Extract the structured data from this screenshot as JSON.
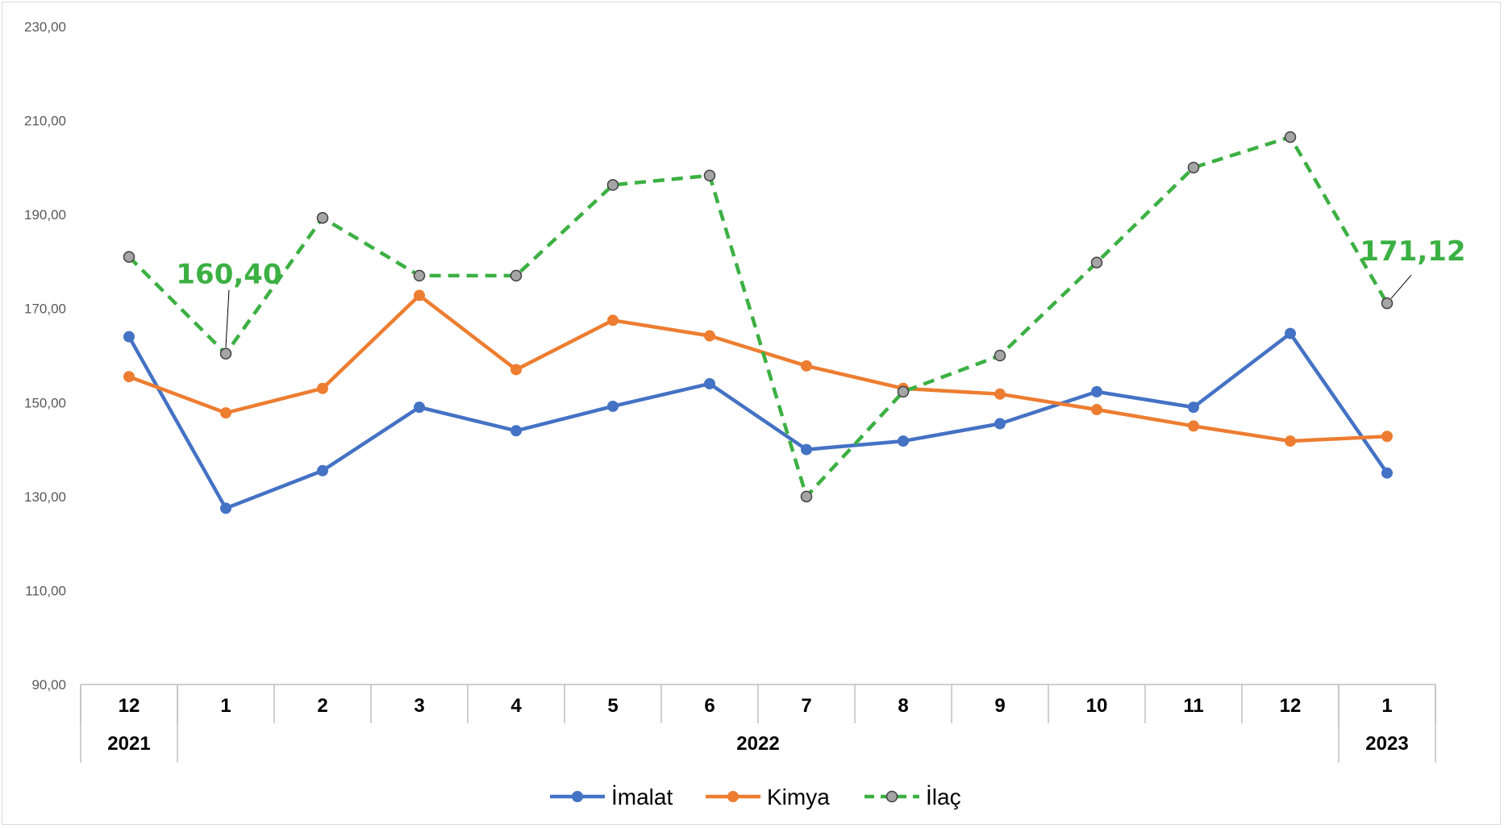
{
  "chart_data": {
    "type": "line",
    "categories": [
      "12",
      "1",
      "2",
      "3",
      "4",
      "5",
      "6",
      "7",
      "8",
      "9",
      "10",
      "11",
      "12",
      "1"
    ],
    "year_groups": [
      {
        "label": "2021",
        "start": 0,
        "end": 0
      },
      {
        "label": "2022",
        "start": 1,
        "end": 12
      },
      {
        "label": "2023",
        "start": 13,
        "end": 13
      }
    ],
    "ylim": [
      90,
      230
    ],
    "yticks": [
      "90,00",
      "110,00",
      "130,00",
      "150,00",
      "170,00",
      "190,00",
      "210,00",
      "230,00"
    ],
    "ytick_values": [
      90,
      110,
      130,
      150,
      170,
      190,
      210,
      230
    ],
    "series": [
      {
        "name": "İmalat",
        "color": "#4472c4",
        "style": "solid",
        "marker": "#4472c4",
        "values": [
          164.0,
          127.5,
          135.5,
          149.0,
          144.0,
          149.2,
          154.0,
          140.0,
          141.8,
          145.5,
          152.3,
          149.0,
          164.7,
          135.0
        ]
      },
      {
        "name": "Kimya",
        "color": "#ed7d31",
        "style": "solid",
        "marker": "#ed7d31",
        "values": [
          155.5,
          147.8,
          153.0,
          172.8,
          157.0,
          167.5,
          164.2,
          157.8,
          153.0,
          151.8,
          148.5,
          145.0,
          141.8,
          142.8
        ]
      },
      {
        "name": "İlaç",
        "color": "#3cb043",
        "style": "dashed",
        "marker": "#a5a5a5",
        "values": [
          181.0,
          160.4,
          189.3,
          177.0,
          177.0,
          196.3,
          198.3,
          130.0,
          152.3,
          160.0,
          179.8,
          200.0,
          206.5,
          171.12
        ]
      }
    ],
    "annotations": [
      {
        "text": "160,40",
        "series": 2,
        "index": 1
      },
      {
        "text": "171,12",
        "series": 2,
        "index": 13
      }
    ],
    "legend_position": "bottom",
    "grid": false
  }
}
